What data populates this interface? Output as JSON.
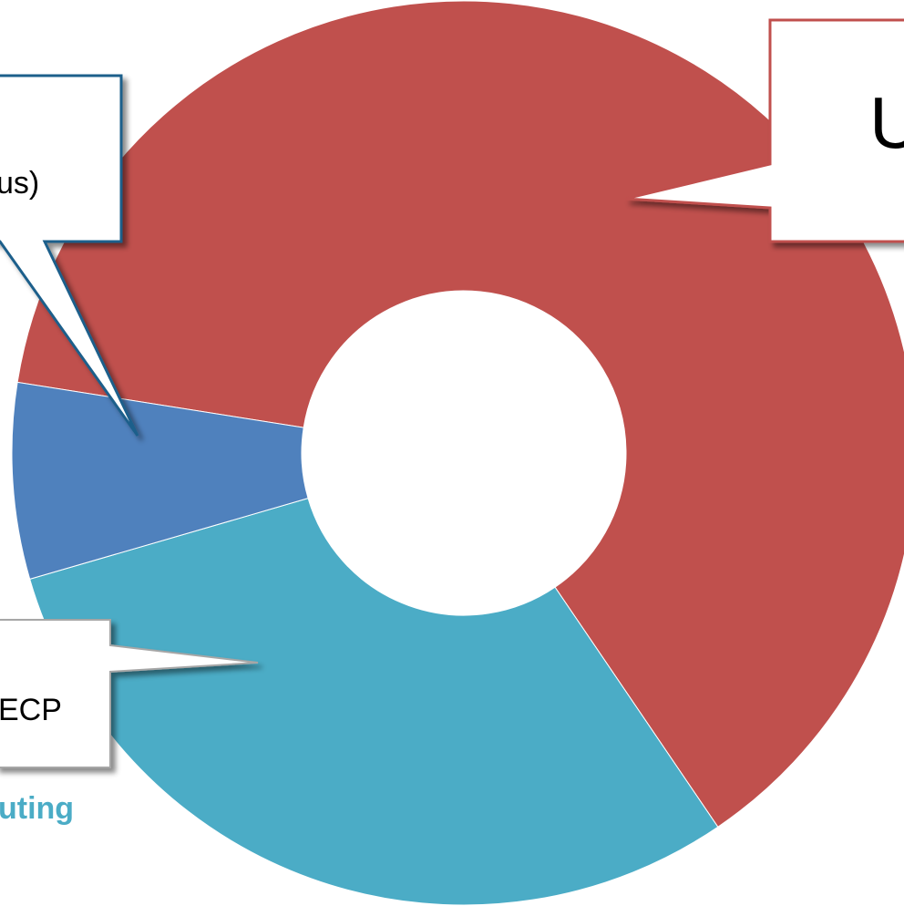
{
  "chart_data": {
    "type": "donut",
    "slices": [
      {
        "label": "",
        "value": 63.0,
        "color": "#c0504d"
      },
      {
        "label": "",
        "value": 30.0,
        "color": "#4bacc6"
      },
      {
        "label": "",
        "value": 7.0,
        "color": "#4f81bd"
      }
    ],
    "annotations": {
      "top_left": "us)",
      "top_right": "U",
      "bottom_left": "ECP",
      "caption": "uting"
    }
  }
}
